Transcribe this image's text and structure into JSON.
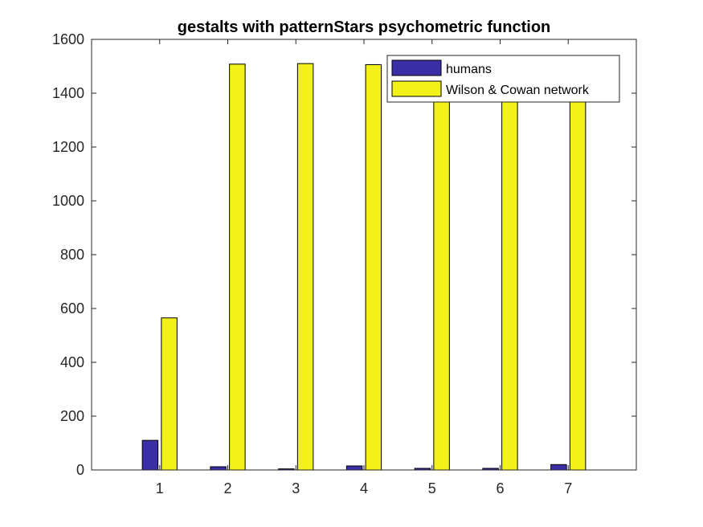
{
  "chart_data": {
    "type": "bar",
    "title": "gestalts with patternStars psychometric function",
    "xlabel": "",
    "ylabel": "",
    "categories": [
      "1",
      "2",
      "3",
      "4",
      "5",
      "6",
      "7"
    ],
    "xlim": [
      0,
      8
    ],
    "ylim": [
      0,
      1600
    ],
    "yticks": [
      "0",
      "200",
      "400",
      "600",
      "800",
      "1000",
      "1200",
      "1400",
      "1600"
    ],
    "grid": false,
    "legend_position": "top-right",
    "series": [
      {
        "name": "humans",
        "color": "#3b2fa8",
        "values": [
          110,
          12,
          4,
          15,
          6,
          6,
          20
        ]
      },
      {
        "name": "Wilson & Cowan network",
        "color": "#f2f21a",
        "values": [
          565,
          1508,
          1510,
          1506,
          1500,
          1500,
          1500
        ]
      }
    ]
  }
}
